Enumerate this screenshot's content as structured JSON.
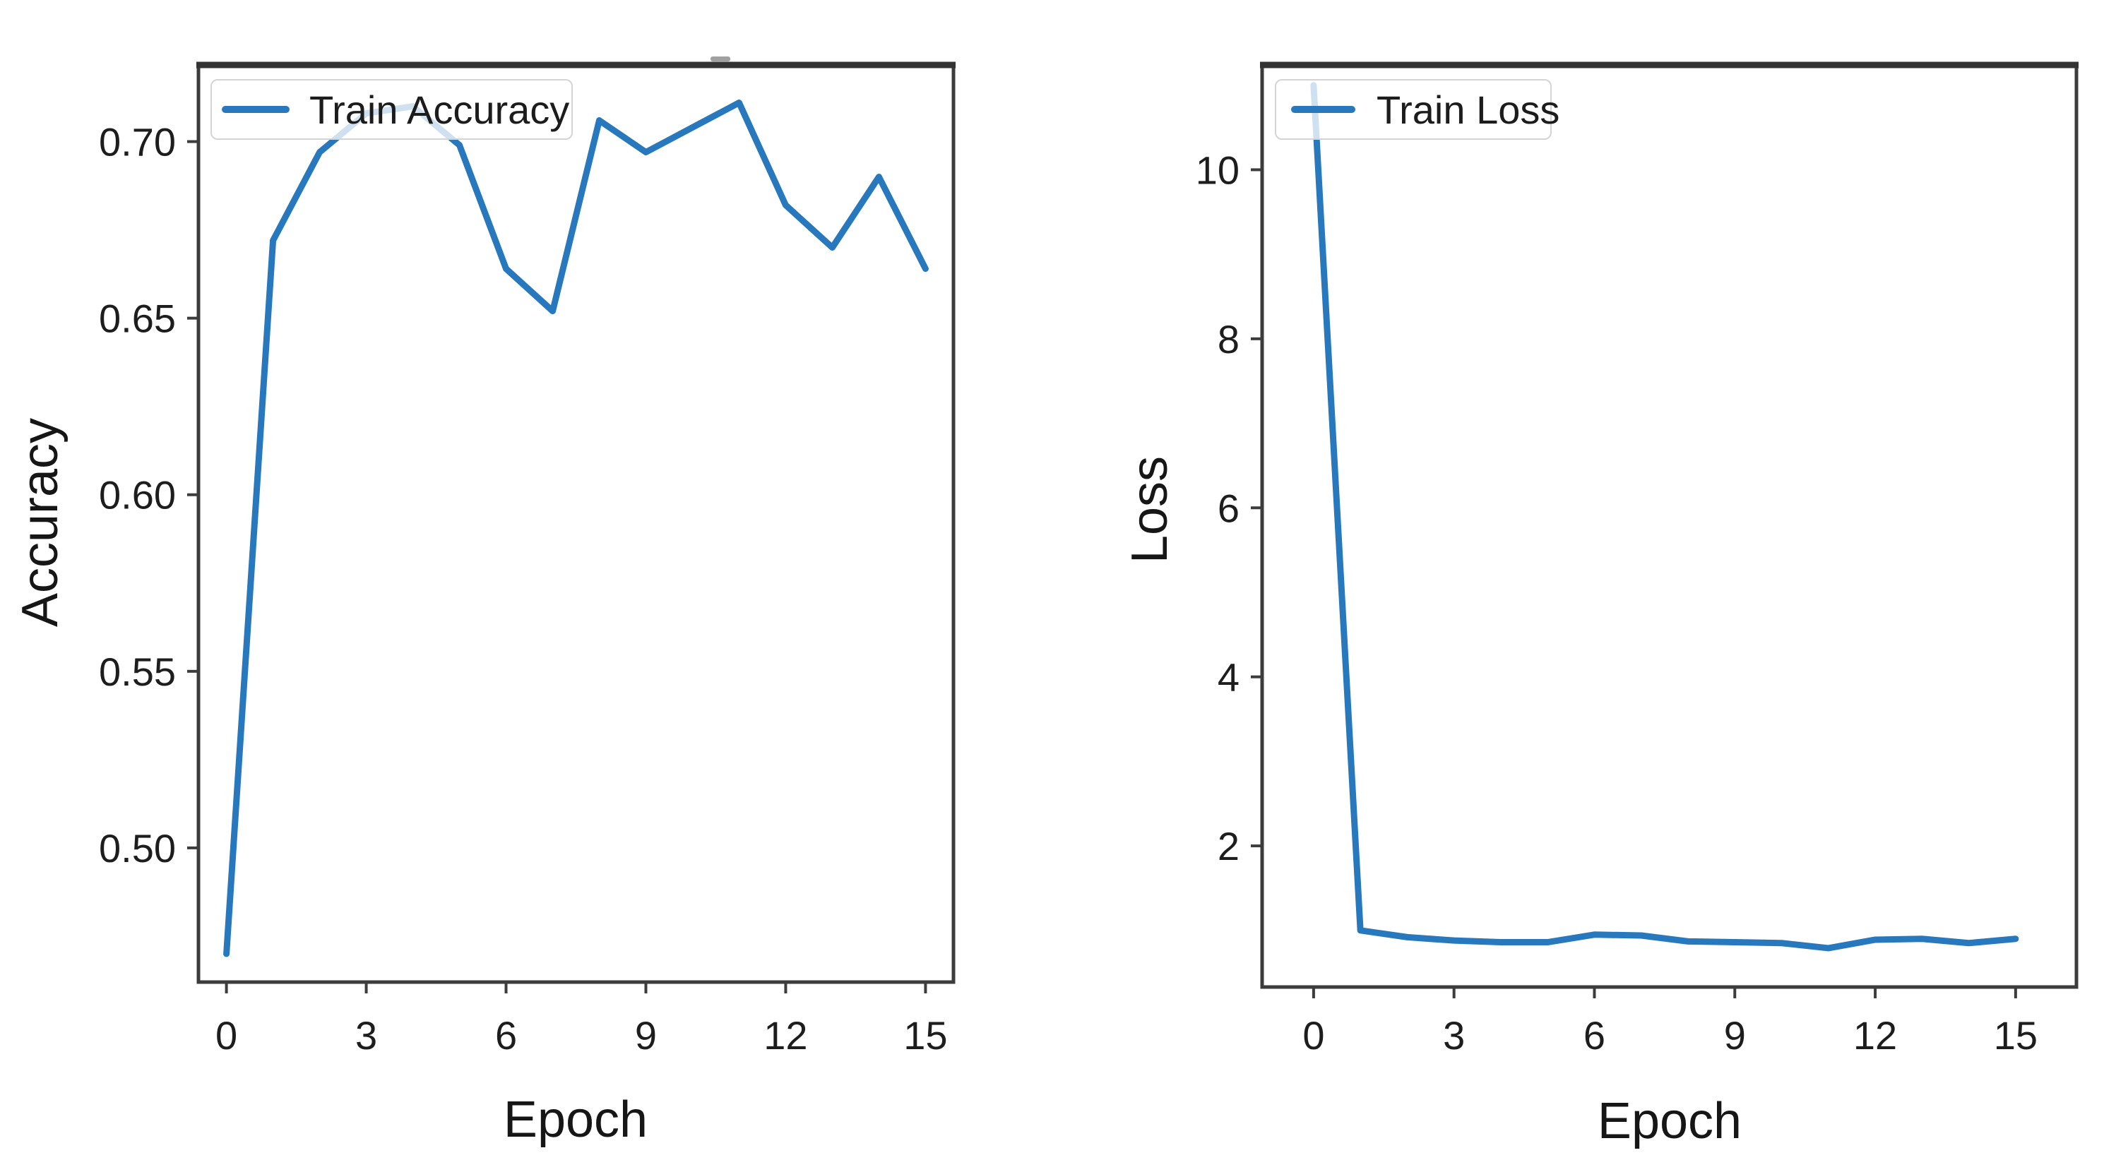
{
  "figure": {
    "background": "#ffffff",
    "accent_color": "#2878bd",
    "spine_color": "#3c3c3c",
    "text_color": "#1c1c1c"
  },
  "chart_data": [
    {
      "type": "line",
      "title": "",
      "xlabel": "Epoch",
      "ylabel": "Accuracy",
      "grid": false,
      "legend_position": "upper left",
      "x": [
        0,
        1,
        2,
        3,
        4,
        5,
        6,
        7,
        8,
        9,
        10,
        11,
        12,
        13,
        14,
        15
      ],
      "series": [
        {
          "name": "Train Accuracy",
          "color": "#2878bd",
          "values": [
            0.47,
            0.672,
            0.697,
            0.708,
            0.71,
            0.699,
            0.664,
            0.652,
            0.706,
            0.697,
            0.704,
            0.711,
            0.682,
            0.67,
            0.69,
            0.664
          ]
        }
      ],
      "xlim": [
        -0.6,
        15.6
      ],
      "ylim": [
        0.462,
        0.7217
      ],
      "xtick_values": [
        0,
        3,
        6,
        9,
        12,
        15
      ],
      "xtick_labels": [
        "0",
        "3",
        "6",
        "9",
        "12",
        "15"
      ],
      "ytick_values": [
        0.5,
        0.55,
        0.6,
        0.65,
        0.7
      ],
      "ytick_labels": [
        "0.50",
        "0.55",
        "0.60",
        "0.65",
        "0.70"
      ]
    },
    {
      "type": "line",
      "title": "",
      "xlabel": "Epoch",
      "ylabel": "Loss",
      "grid": false,
      "legend_position": "upper left",
      "x": [
        0,
        1,
        2,
        3,
        4,
        5,
        6,
        7,
        8,
        9,
        10,
        11,
        12,
        13,
        14,
        15
      ],
      "series": [
        {
          "name": "Train Loss",
          "color": "#2878bd",
          "values": [
            11.0,
            1.0,
            0.92,
            0.88,
            0.86,
            0.86,
            0.95,
            0.94,
            0.87,
            0.86,
            0.85,
            0.79,
            0.89,
            0.9,
            0.85,
            0.9
          ]
        }
      ],
      "xlim": [
        -1.1,
        16.3
      ],
      "ylim": [
        0.33,
        11.24
      ],
      "xtick_values": [
        0,
        3,
        6,
        9,
        12,
        15
      ],
      "xtick_labels": [
        "0",
        "3",
        "6",
        "9",
        "12",
        "15"
      ],
      "ytick_values": [
        2,
        4,
        6,
        8,
        10
      ],
      "ytick_labels": [
        "2",
        "4",
        "6",
        "8",
        "10"
      ]
    }
  ]
}
